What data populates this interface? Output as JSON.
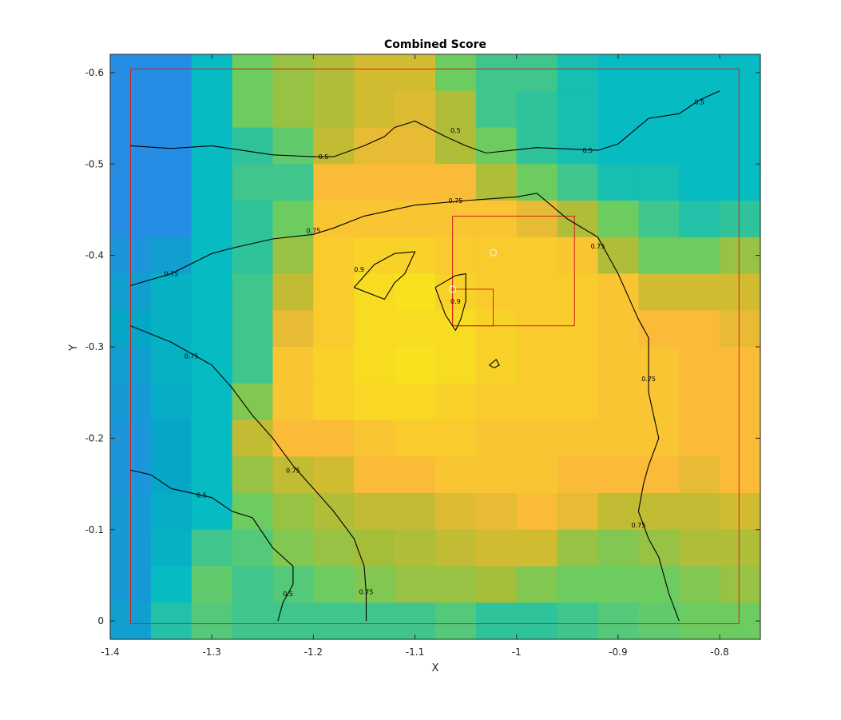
{
  "chart_data": {
    "type": "heatmap",
    "title": "Combined Score",
    "xlabel": "X",
    "ylabel": "Y",
    "xlim": [
      -1.4,
      -0.76
    ],
    "ylim": [
      -0.62,
      0.02
    ],
    "y_reversed": true,
    "x_ticks": [
      -1.4,
      -1.3,
      -1.2,
      -1.1,
      -1,
      -0.9,
      -0.8
    ],
    "x_tick_labels": [
      "-1.4",
      "-1.3",
      "-1.2",
      "-1.1",
      "-1",
      "-0.9",
      "-0.8"
    ],
    "y_ticks": [
      -0.6,
      -0.5,
      -0.4,
      -0.3,
      -0.2,
      -0.1,
      0
    ],
    "y_tick_labels": [
      "-0.6",
      "-0.5",
      "-0.4",
      "-0.3",
      "-0.2",
      "-0.1",
      "0"
    ],
    "grid": false,
    "colormap": "parula",
    "colors": {
      "contour": "#000000",
      "boundary": "#d62020",
      "marker": "#f0f0f0",
      "axis": "#262626"
    },
    "cells": {
      "x_edges": [
        -1.4,
        -1.36,
        -1.32,
        -1.28,
        -1.24,
        -1.2,
        -1.16,
        -1.12,
        -1.08,
        -1.04,
        -1.0,
        -0.96,
        -0.92,
        -0.88,
        -0.84,
        -0.8,
        -0.76
      ],
      "y_edges": [
        -0.62,
        -0.58,
        -0.54,
        -0.5,
        -0.46,
        -0.42,
        -0.38,
        -0.34,
        -0.3,
        -0.26,
        -0.22,
        -0.18,
        -0.14,
        -0.1,
        -0.06,
        -0.02,
        0.02
      ],
      "values": [
        [
          0.25,
          0.25,
          0.45,
          0.62,
          0.68,
          0.72,
          0.78,
          0.78,
          0.62,
          0.55,
          0.55,
          0.48,
          0.45,
          0.45,
          0.45,
          0.45
        ],
        [
          0.25,
          0.25,
          0.45,
          0.62,
          0.68,
          0.72,
          0.78,
          0.8,
          0.72,
          0.55,
          0.52,
          0.48,
          0.45,
          0.45,
          0.45,
          0.45
        ],
        [
          0.25,
          0.25,
          0.45,
          0.52,
          0.6,
          0.75,
          0.82,
          0.82,
          0.72,
          0.62,
          0.52,
          0.48,
          0.45,
          0.45,
          0.45,
          0.45
        ],
        [
          0.25,
          0.25,
          0.45,
          0.55,
          0.55,
          0.85,
          0.85,
          0.85,
          0.85,
          0.72,
          0.62,
          0.55,
          0.48,
          0.48,
          0.45,
          0.45
        ],
        [
          0.25,
          0.25,
          0.45,
          0.52,
          0.62,
          0.88,
          0.88,
          0.88,
          0.88,
          0.88,
          0.82,
          0.72,
          0.62,
          0.55,
          0.5,
          0.52
        ],
        [
          0.28,
          0.32,
          0.45,
          0.52,
          0.68,
          0.9,
          0.92,
          0.92,
          0.9,
          0.9,
          0.9,
          0.88,
          0.72,
          0.62,
          0.62,
          0.68
        ],
        [
          0.32,
          0.4,
          0.45,
          0.55,
          0.75,
          0.9,
          0.94,
          0.95,
          0.92,
          0.9,
          0.9,
          0.9,
          0.88,
          0.78,
          0.78,
          0.78
        ],
        [
          0.35,
          0.4,
          0.45,
          0.55,
          0.82,
          0.9,
          0.94,
          0.94,
          0.94,
          0.92,
          0.9,
          0.9,
          0.88,
          0.85,
          0.85,
          0.82
        ],
        [
          0.32,
          0.4,
          0.45,
          0.55,
          0.88,
          0.92,
          0.94,
          0.95,
          0.94,
          0.92,
          0.9,
          0.9,
          0.88,
          0.88,
          0.85,
          0.85
        ],
        [
          0.3,
          0.38,
          0.45,
          0.65,
          0.88,
          0.92,
          0.93,
          0.93,
          0.92,
          0.9,
          0.9,
          0.9,
          0.88,
          0.88,
          0.85,
          0.85
        ],
        [
          0.28,
          0.35,
          0.45,
          0.75,
          0.85,
          0.85,
          0.88,
          0.9,
          0.9,
          0.88,
          0.88,
          0.88,
          0.88,
          0.88,
          0.85,
          0.85
        ],
        [
          0.28,
          0.35,
          0.45,
          0.68,
          0.75,
          0.78,
          0.85,
          0.85,
          0.88,
          0.88,
          0.88,
          0.85,
          0.85,
          0.85,
          0.82,
          0.85
        ],
        [
          0.3,
          0.38,
          0.45,
          0.62,
          0.68,
          0.72,
          0.75,
          0.75,
          0.8,
          0.82,
          0.85,
          0.82,
          0.75,
          0.75,
          0.75,
          0.78
        ],
        [
          0.3,
          0.4,
          0.55,
          0.58,
          0.65,
          0.68,
          0.7,
          0.72,
          0.75,
          0.78,
          0.78,
          0.68,
          0.65,
          0.68,
          0.72,
          0.72
        ],
        [
          0.3,
          0.45,
          0.6,
          0.55,
          0.58,
          0.62,
          0.65,
          0.68,
          0.68,
          0.7,
          0.65,
          0.62,
          0.62,
          0.62,
          0.65,
          0.68
        ],
        [
          0.32,
          0.5,
          0.58,
          0.55,
          0.55,
          0.55,
          0.55,
          0.55,
          0.58,
          0.52,
          0.52,
          0.55,
          0.58,
          0.6,
          0.62,
          0.62
        ]
      ]
    },
    "contours": [
      {
        "level": "0.5",
        "points": [
          [
            -1.38,
            -0.52
          ],
          [
            -1.34,
            -0.517
          ],
          [
            -1.3,
            -0.52
          ],
          [
            -1.24,
            -0.51
          ],
          [
            -1.2,
            -0.508
          ],
          [
            -1.18,
            -0.508
          ],
          [
            -1.15,
            -0.52
          ],
          [
            -1.13,
            -0.53
          ],
          [
            -1.12,
            -0.54
          ],
          [
            -1.1,
            -0.547
          ],
          [
            -1.07,
            -0.53
          ],
          [
            -1.05,
            -0.52
          ],
          [
            -1.03,
            -0.512
          ],
          [
            -0.98,
            -0.518
          ],
          [
            -0.92,
            -0.515
          ],
          [
            -0.9,
            -0.522
          ],
          [
            -0.87,
            -0.55
          ],
          [
            -0.84,
            -0.555
          ],
          [
            -0.82,
            -0.57
          ],
          [
            -0.8,
            -0.58
          ]
        ],
        "labels": [
          [
            -1.19,
            -0.508
          ],
          [
            -1.06,
            -0.537
          ],
          [
            -0.93,
            -0.515
          ],
          [
            -0.82,
            -0.568
          ]
        ]
      },
      {
        "level": "0.75",
        "points": [
          [
            -1.38,
            -0.367
          ],
          [
            -1.34,
            -0.38
          ],
          [
            -1.3,
            -0.402
          ],
          [
            -1.28,
            -0.408
          ],
          [
            -1.24,
            -0.418
          ],
          [
            -1.2,
            -0.423
          ],
          [
            -1.18,
            -0.43
          ],
          [
            -1.15,
            -0.443
          ],
          [
            -1.1,
            -0.455
          ],
          [
            -1.05,
            -0.46
          ],
          [
            -1.0,
            -0.464
          ],
          [
            -0.98,
            -0.468
          ],
          [
            -0.95,
            -0.44
          ],
          [
            -0.92,
            -0.42
          ],
          [
            -0.9,
            -0.38
          ],
          [
            -0.88,
            -0.33
          ],
          [
            -0.87,
            -0.31
          ],
          [
            -0.87,
            -0.25
          ],
          [
            -0.86,
            -0.2
          ],
          [
            -0.87,
            -0.17
          ],
          [
            -0.875,
            -0.15
          ],
          [
            -0.88,
            -0.12
          ],
          [
            -0.87,
            -0.09
          ],
          [
            -0.86,
            -0.07
          ],
          [
            -0.85,
            -0.03
          ],
          [
            -0.84,
            0
          ]
        ],
        "labels": [
          [
            -1.2,
            -0.427
          ],
          [
            -1.06,
            -0.46
          ],
          [
            -0.92,
            -0.41
          ],
          [
            -0.87,
            -0.265
          ],
          [
            -0.88,
            -0.105
          ],
          [
            -1.34,
            -0.38
          ]
        ]
      },
      {
        "level": "0.75",
        "points": [
          [
            -1.38,
            -0.323
          ],
          [
            -1.34,
            -0.305
          ],
          [
            -1.3,
            -0.28
          ],
          [
            -1.28,
            -0.255
          ],
          [
            -1.26,
            -0.225
          ],
          [
            -1.24,
            -0.2
          ],
          [
            -1.22,
            -0.17
          ],
          [
            -1.2,
            -0.145
          ],
          [
            -1.18,
            -0.12
          ],
          [
            -1.16,
            -0.09
          ],
          [
            -1.15,
            -0.06
          ],
          [
            -1.148,
            -0.03
          ],
          [
            -1.148,
            0
          ]
        ],
        "labels": [
          [
            -1.32,
            -0.29
          ],
          [
            -1.22,
            -0.165
          ],
          [
            -1.148,
            -0.032
          ]
        ]
      },
      {
        "level": "0.5",
        "points": [
          [
            -1.38,
            -0.165
          ],
          [
            -1.36,
            -0.16
          ],
          [
            -1.34,
            -0.145
          ],
          [
            -1.3,
            -0.135
          ],
          [
            -1.28,
            -0.12
          ],
          [
            -1.26,
            -0.113
          ],
          [
            -1.24,
            -0.08
          ],
          [
            -1.22,
            -0.06
          ],
          [
            -1.22,
            -0.04
          ],
          [
            -1.23,
            -0.02
          ],
          [
            -1.235,
            0
          ]
        ],
        "labels": [
          [
            -1.31,
            -0.138
          ],
          [
            -1.225,
            -0.03
          ]
        ]
      },
      {
        "level": "0.9",
        "points": [
          [
            -1.16,
            -0.365
          ],
          [
            -1.14,
            -0.39
          ],
          [
            -1.12,
            -0.402
          ],
          [
            -1.1,
            -0.404
          ],
          [
            -1.11,
            -0.38
          ],
          [
            -1.12,
            -0.37
          ],
          [
            -1.13,
            -0.352
          ],
          [
            -1.16,
            -0.365
          ]
        ],
        "labels": [
          [
            -1.155,
            -0.385
          ]
        ]
      },
      {
        "level": "0.9",
        "points": [
          [
            -1.08,
            -0.365
          ],
          [
            -1.06,
            -0.378
          ],
          [
            -1.05,
            -0.38
          ],
          [
            -1.05,
            -0.365
          ],
          [
            -1.05,
            -0.35
          ],
          [
            -1.055,
            -0.33
          ],
          [
            -1.06,
            -0.318
          ],
          [
            -1.07,
            -0.335
          ],
          [
            -1.08,
            -0.365
          ]
        ],
        "labels": [
          [
            -1.06,
            -0.35
          ]
        ]
      },
      {
        "level": "",
        "points": [
          [
            -1.027,
            -0.28
          ],
          [
            -1.02,
            -0.286
          ],
          [
            -1.017,
            -0.28
          ],
          [
            -1.022,
            -0.277
          ],
          [
            -1.027,
            -0.28
          ]
        ],
        "labels": []
      }
    ],
    "boundaries": [
      {
        "x": [
          -1.38,
          -0.781
        ],
        "y": [
          -0.604,
          0.003
        ]
      },
      {
        "x": [
          -1.063,
          -0.943
        ],
        "y": [
          -0.443,
          -0.323
        ]
      },
      {
        "x": [
          -1.063,
          -1.023
        ],
        "y": [
          -0.363,
          -0.323
        ]
      }
    ],
    "markers": [
      {
        "x": -1.023,
        "y": -0.403
      },
      {
        "x": -1.063,
        "y": -0.363
      }
    ]
  }
}
